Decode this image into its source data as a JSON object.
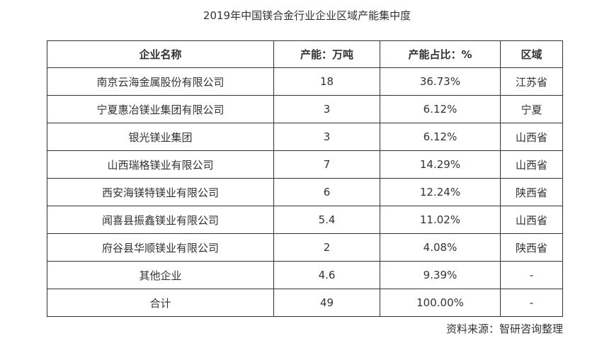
{
  "title": "2019年中国镁合金行业企业区域产能集中度",
  "table": {
    "headers": [
      "企业名称",
      "产能：万吨",
      "产能占比：%",
      "区域"
    ],
    "rows": [
      [
        "南京云海金属股份有限公司",
        "18",
        "36.73%",
        "江苏省"
      ],
      [
        "宁夏惠冶镁业集团有限公司",
        "3",
        "6.12%",
        "宁夏"
      ],
      [
        "银光镁业集团",
        "3",
        "6.12%",
        "山西省"
      ],
      [
        "山西瑞格镁业有限公司",
        "7",
        "14.29%",
        "山西省"
      ],
      [
        "西安海镁特镁业有限公司",
        "6",
        "12.24%",
        "陕西省"
      ],
      [
        "闻喜县振鑫镁业有限公司",
        "5.4",
        "11.02%",
        "山西省"
      ],
      [
        "府谷县华顺镁业有限公司",
        "2",
        "4.08%",
        "陕西省"
      ],
      [
        "其他企业",
        "4.6",
        "9.39%",
        "-"
      ],
      [
        "合计",
        "49",
        "100.00%",
        "-"
      ]
    ]
  },
  "source": "资料来源：智研咨询整理"
}
